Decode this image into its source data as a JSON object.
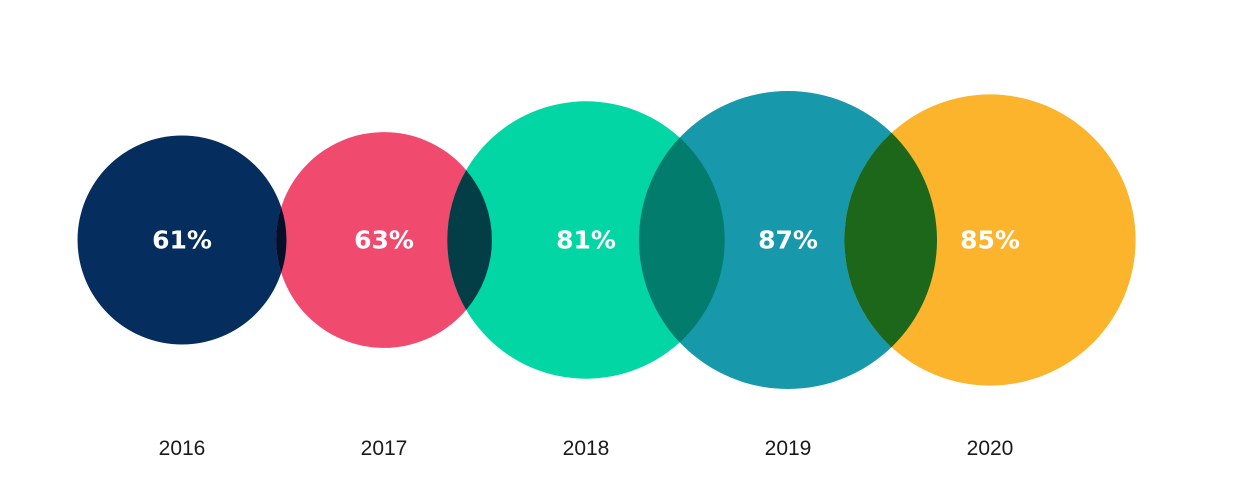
{
  "chart_data": {
    "type": "bubble",
    "title": "",
    "categories": [
      "2016",
      "2017",
      "2018",
      "2019",
      "2020"
    ],
    "values": [
      61,
      63,
      81,
      87,
      85
    ],
    "value_labels": [
      "61%",
      "63%",
      "81%",
      "87%",
      "85%"
    ],
    "unit": "%",
    "colors": [
      "#052e5e",
      "#f14a6f",
      "#02d6a5",
      "#1898ab",
      "#fdb42d"
    ],
    "overlap_colors": [
      "#040f2a",
      "#033e46",
      "#027c6d",
      "#1c6719"
    ],
    "grid": false,
    "legend": "none"
  }
}
